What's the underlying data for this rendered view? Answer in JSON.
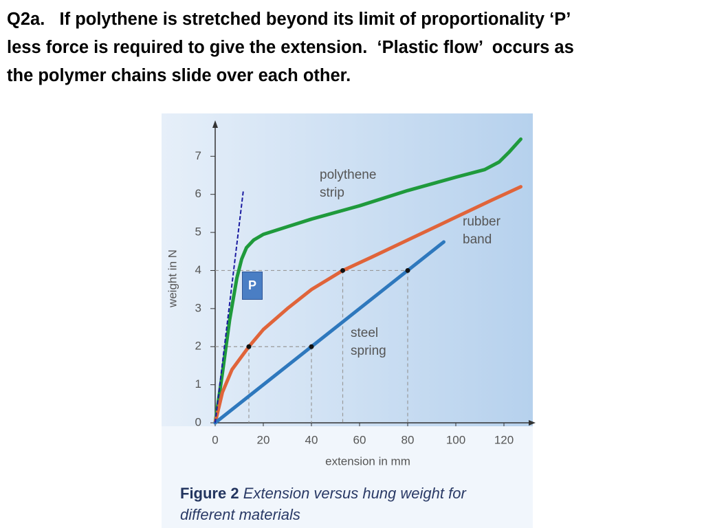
{
  "slide_text": [
    "Q2a.   If polythene is stretched beyond its limit of proportionality ‘P’",
    "less force is required to give the extension.  ‘Plastic flow’  occurs as",
    "the polymer chains slide over each other."
  ],
  "chart_data": {
    "type": "line",
    "x_label": "extension in mm",
    "y_label": "weight in N",
    "caption_bold": "Figure 2",
    "caption": "Extension versus hung weight for different materials",
    "xlim": [
      0,
      128
    ],
    "ylim": [
      0,
      7.8
    ],
    "xticks": [
      0,
      20,
      40,
      60,
      80,
      100,
      120
    ],
    "yticks": [
      0,
      1,
      2,
      3,
      4,
      5,
      6,
      7
    ],
    "grid": false,
    "series": [
      {
        "name": "polythene strip",
        "color": "#1f9a3c",
        "x": [
          0,
          3,
          6,
          9,
          11,
          13,
          16,
          20,
          30,
          40,
          60,
          80,
          100,
          112,
          118,
          122,
          127
        ],
        "values": [
          0,
          1.3,
          2.7,
          3.8,
          4.3,
          4.6,
          4.8,
          4.95,
          5.15,
          5.35,
          5.7,
          6.1,
          6.45,
          6.65,
          6.85,
          7.1,
          7.45
        ]
      },
      {
        "name": "rubber band",
        "color": "#e0643a",
        "x": [
          0,
          3,
          7,
          14,
          20,
          30,
          40,
          53,
          65,
          80,
          100,
          115,
          127
        ],
        "values": [
          0,
          0.8,
          1.4,
          2,
          2.45,
          3,
          3.5,
          4,
          4.35,
          4.8,
          5.4,
          5.85,
          6.2
        ]
      },
      {
        "name": "steel spring",
        "color": "#2e78bd",
        "x": [
          0,
          20,
          40,
          60,
          80,
          95
        ],
        "values": [
          0,
          1,
          2,
          3,
          4,
          4.75
        ]
      }
    ],
    "proportionality_line": {
      "x": [
        0,
        11.7
      ],
      "y": [
        0,
        6.1
      ],
      "color": "#1a1aa0",
      "label": "P"
    },
    "markers": [
      {
        "x": 14,
        "y": 2
      },
      {
        "x": 40,
        "y": 2
      },
      {
        "x": 53,
        "y": 4
      },
      {
        "x": 80,
        "y": 4
      }
    ]
  }
}
